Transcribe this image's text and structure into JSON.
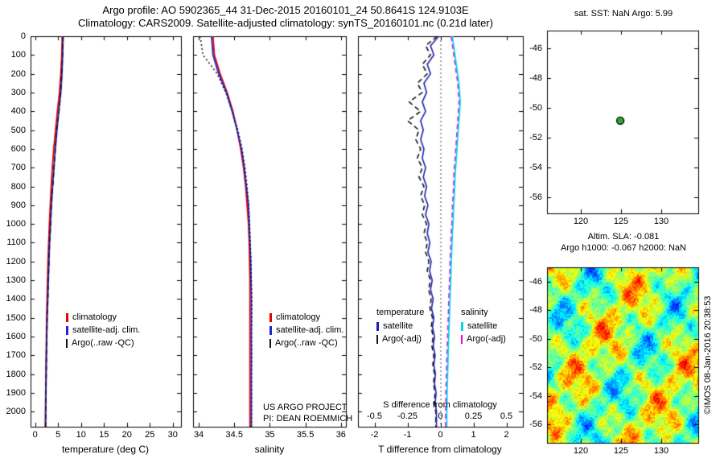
{
  "title": {
    "line1": "Argo profile: AO 5902365_44 31-Dec-2015 20160101_24 50.8641S 124.9103E",
    "line2": "Climatology: CARS2009. Satellite-adjusted climatology: synTS_20160101.nc (0.21d later)"
  },
  "credit": "©IMOS 08-Jan-2016 20:38:53",
  "colors": {
    "climatology": "#e60000",
    "satellite_adj": "#2424cc",
    "argo_raw": "#111111",
    "t_satellite": "#1f1fb4",
    "s_satellite": "#00d8e8",
    "s_argo": "#ee00ee",
    "marker_fill": "#2fa82f",
    "axis": "#000000"
  },
  "chart_data": [
    {
      "type": "line",
      "panel": "temperature-profile",
      "xlabel": "temperature (deg C)",
      "ylabel": "depth (m), increasing downward",
      "xlim": [
        -1,
        31.8
      ],
      "ylim_depth": [
        0,
        2080
      ],
      "xticks": [
        0,
        5,
        10,
        15,
        20,
        25,
        30
      ],
      "yticks": [
        0,
        100,
        200,
        300,
        400,
        500,
        600,
        700,
        800,
        900,
        1000,
        1100,
        1200,
        1300,
        1400,
        1500,
        1600,
        1700,
        1800,
        1900,
        2000
      ],
      "depths": [
        0,
        100,
        200,
        300,
        400,
        500,
        600,
        700,
        800,
        900,
        1000,
        1100,
        1200,
        1300,
        1400,
        1500,
        1600,
        1700,
        1800,
        1900,
        2000,
        2080
      ],
      "series": [
        {
          "name": "climatology",
          "color_key": "climatology",
          "style": "solid",
          "values": [
            5.9,
            5.8,
            5.6,
            5.3,
            4.85,
            4.45,
            4.05,
            3.75,
            3.5,
            3.3,
            3.1,
            2.95,
            2.8,
            2.7,
            2.6,
            2.5,
            2.45,
            2.4,
            2.35,
            2.3,
            2.25,
            2.22
          ]
        },
        {
          "name": "satellite-adj. clim.",
          "color_key": "satellite_adj",
          "style": "solid",
          "values": [
            6.1,
            6.0,
            5.85,
            5.6,
            5.15,
            4.75,
            4.4,
            4.1,
            3.8,
            3.55,
            3.35,
            3.15,
            3.0,
            2.88,
            2.75,
            2.62,
            2.53,
            2.46,
            2.4,
            2.35,
            2.3,
            2.28
          ]
        },
        {
          "name": "Argo(..raw -QC)",
          "color_key": "argo_raw",
          "style": "dashed",
          "values": [
            6.0,
            5.95,
            5.8,
            5.55,
            5.2,
            4.7,
            4.38,
            4.12,
            3.85,
            3.5,
            3.38,
            3.12,
            3.02,
            2.85,
            2.78,
            2.6,
            2.55,
            2.44,
            2.42,
            2.33,
            2.31,
            2.27
          ]
        }
      ],
      "legend": [
        "climatology",
        "satellite-adj. clim.",
        "Argo(..raw -QC)"
      ]
    },
    {
      "type": "line",
      "panel": "salinity-profile",
      "xlabel": "salinity",
      "ylabel": "depth (m), increasing downward",
      "xlim": [
        33.92,
        36.07
      ],
      "xticks": [
        34,
        34.5,
        35,
        35.5,
        36
      ],
      "depths": [
        0,
        100,
        200,
        300,
        400,
        500,
        600,
        700,
        800,
        900,
        1000,
        1100,
        1200,
        1300,
        1400,
        1500,
        1600,
        1700,
        1800,
        1900,
        2000,
        2080
      ],
      "series": [
        {
          "name": "climatology",
          "color_key": "climatology",
          "style": "solid",
          "values": [
            34.2,
            34.22,
            34.3,
            34.4,
            34.48,
            34.54,
            34.59,
            34.63,
            34.66,
            34.68,
            34.7,
            34.71,
            34.715,
            34.72,
            34.72,
            34.72,
            34.72,
            34.72,
            34.72,
            34.72,
            34.72,
            34.72
          ]
        },
        {
          "name": "satellite-adj. clim.",
          "color_key": "satellite_adj",
          "style": "solid",
          "values": [
            34.18,
            34.2,
            34.28,
            34.39,
            34.47,
            34.54,
            34.6,
            34.64,
            34.67,
            34.7,
            34.71,
            34.72,
            34.73,
            34.735,
            34.74,
            34.74,
            34.74,
            34.74,
            34.74,
            34.74,
            34.74,
            34.74
          ]
        },
        {
          "name": "Argo(..raw -QC)",
          "color_key": "argo_raw",
          "style": "dotted",
          "values": [
            34.02,
            34.06,
            34.26,
            34.38,
            34.47,
            34.55,
            34.61,
            34.65,
            34.68,
            34.7,
            34.715,
            34.725,
            34.735,
            34.74,
            34.745,
            34.745,
            34.74,
            34.745,
            34.74,
            34.742,
            34.74,
            34.74
          ]
        }
      ],
      "legend": [
        "climatology",
        "satellite-adj. clim.",
        "Argo(..raw -QC)"
      ],
      "annotations": [
        "US ARGO PROJECT",
        "PI: DEAN ROEMMICH"
      ]
    },
    {
      "type": "line",
      "panel": "difference-from-climatology",
      "xlabel": "T difference from climatology",
      "inner_axis_label": "S difference from climatology",
      "xlim_T": [
        -2.5,
        2.5
      ],
      "xticks_T": [
        -2,
        -1,
        0,
        1,
        2
      ],
      "xticks_S": [
        -0.5,
        -0.25,
        0,
        0.25,
        0.5
      ],
      "s_to_t_scale": 4,
      "depths": [
        0,
        50,
        100,
        150,
        200,
        250,
        300,
        350,
        400,
        450,
        500,
        550,
        600,
        650,
        700,
        750,
        800,
        850,
        900,
        950,
        1000,
        1050,
        1100,
        1150,
        1200,
        1250,
        1300,
        1350,
        1400,
        1450,
        1500,
        1550,
        1600,
        1650,
        1700,
        1750,
        1800,
        1850,
        1900,
        1950,
        2000,
        2080
      ],
      "series": [
        {
          "name": "temperature satellite",
          "color_key": "t_satellite",
          "style": "solid",
          "units": "degC",
          "values": [
            -0.05,
            -0.3,
            -0.2,
            -0.4,
            -0.3,
            -0.5,
            -0.42,
            -0.55,
            -0.45,
            -0.6,
            -0.52,
            -0.6,
            -0.5,
            -0.55,
            -0.45,
            -0.52,
            -0.42,
            -0.48,
            -0.38,
            -0.45,
            -0.35,
            -0.4,
            -0.32,
            -0.38,
            -0.28,
            -0.33,
            -0.25,
            -0.3,
            -0.22,
            -0.27,
            -0.2,
            -0.24,
            -0.18,
            -0.22,
            -0.16,
            -0.2,
            -0.15,
            -0.18,
            -0.13,
            -0.16,
            -0.12,
            -0.12
          ]
        },
        {
          "name": "temperature Argo(-adj)",
          "color_key": "argo_raw",
          "style": "dashed",
          "units": "degC",
          "values": [
            -0.1,
            -0.45,
            -0.3,
            -0.55,
            -0.4,
            -0.7,
            -0.55,
            -0.95,
            -0.6,
            -1.0,
            -0.65,
            -0.75,
            -0.6,
            -0.7,
            -0.55,
            -0.65,
            -0.5,
            -0.6,
            -0.48,
            -0.55,
            -0.42,
            -0.5,
            -0.4,
            -0.45,
            -0.35,
            -0.4,
            -0.3,
            -0.36,
            -0.28,
            -0.32,
            -0.24,
            -0.28,
            -0.22,
            -0.26,
            -0.2,
            -0.23,
            -0.18,
            -0.21,
            -0.16,
            -0.19,
            -0.14,
            -0.14
          ]
        },
        {
          "name": "salinity satellite",
          "color_key": "s_satellite",
          "style": "solid",
          "units": "psu",
          "values": [
            0.09,
            0.1,
            0.11,
            0.12,
            0.13,
            0.14,
            0.145,
            0.15,
            0.145,
            0.14,
            0.135,
            0.13,
            0.125,
            0.12,
            0.115,
            0.11,
            0.108,
            0.105,
            0.1,
            0.098,
            0.095,
            0.09,
            0.088,
            0.085,
            0.082,
            0.08,
            0.078,
            0.075,
            0.072,
            0.07,
            0.068,
            0.065,
            0.063,
            0.06,
            0.058,
            0.056,
            0.054,
            0.052,
            0.05,
            0.05,
            0.048,
            0.048
          ]
        },
        {
          "name": "salinity Argo(-adj)",
          "color_key": "s_argo",
          "style": "dashed",
          "units": "psu",
          "values": [
            0.082,
            0.092,
            0.102,
            0.112,
            0.122,
            0.132,
            0.137,
            0.142,
            0.137,
            0.132,
            0.127,
            0.122,
            0.117,
            0.112,
            0.107,
            0.102,
            0.1,
            0.097,
            0.092,
            0.09,
            0.087,
            0.082,
            0.08,
            0.077,
            0.074,
            0.072,
            0.07,
            0.067,
            0.064,
            0.062,
            0.06,
            0.057,
            0.055,
            0.052,
            0.05,
            0.048,
            0.046,
            0.044,
            0.042,
            0.042,
            0.04,
            0.04
          ]
        }
      ],
      "legend_left": {
        "title": "temperature",
        "items": [
          "satellite",
          "Argo(-adj)"
        ]
      },
      "legend_right": {
        "title": "salinity",
        "items": [
          "satellite",
          "Argo(-adj)"
        ]
      }
    },
    {
      "type": "scatter",
      "panel": "float-location-map",
      "title": "sat. SST: NaN Argo: 5.99",
      "xlim": [
        115.8,
        134.6
      ],
      "ylim": [
        -57.1,
        -44.8
      ],
      "xticks": [
        120,
        125,
        130
      ],
      "yticks": [
        -46,
        -48,
        -50,
        -52,
        -54,
        -56
      ],
      "point": {
        "lon": 124.9103,
        "lat": -50.8641,
        "marker": "circle",
        "fill": "#2fa82f",
        "edge": "#000000"
      }
    },
    {
      "type": "heatmap",
      "panel": "sla-map",
      "title_lines": [
        "Altim. SLA: -0.081",
        "Argo h1000: -0.067 h2000: NaN"
      ],
      "xlim": [
        115.8,
        134.6
      ],
      "ylim": [
        -57.3,
        -45.0
      ],
      "xticks": [
        120,
        125,
        130
      ],
      "yticks": [
        -46,
        -48,
        -50,
        -52,
        -54,
        -56
      ],
      "colormap": "jet"
    }
  ]
}
